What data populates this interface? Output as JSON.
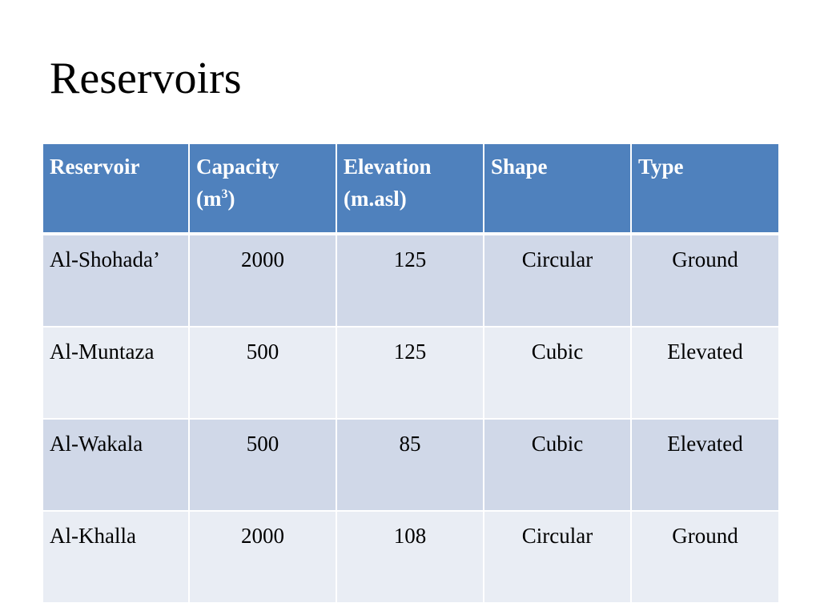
{
  "slide": {
    "title": "Reservoirs"
  },
  "table": {
    "headers": {
      "reservoir": "Reservoir",
      "capacity_main": "Capacity",
      "capacity_unit_pre": "(m",
      "capacity_unit_sup": "3",
      "capacity_unit_post": ")",
      "elevation_main": "Elevation",
      "elevation_unit": "(m.asl)",
      "shape": "Shape",
      "type": "Type"
    },
    "rows": [
      {
        "name": "Al-Shohada’",
        "capacity": "2000",
        "elevation": "125",
        "shape": "Circular",
        "type": "Ground"
      },
      {
        "name": "Al-Muntaza",
        "capacity": "500",
        "elevation": "125",
        "shape": "Cubic",
        "type": "Elevated"
      },
      {
        "name": "Al-Wakala",
        "capacity": "500",
        "elevation": "85",
        "shape": "Cubic",
        "type": "Elevated"
      },
      {
        "name": "Al-Khalla",
        "capacity": "2000",
        "elevation": "108",
        "shape": "Circular",
        "type": "Ground"
      }
    ]
  },
  "colors": {
    "header": "#4f81bd",
    "row_dark": "#d0d8e8",
    "row_light": "#e9edf4"
  }
}
